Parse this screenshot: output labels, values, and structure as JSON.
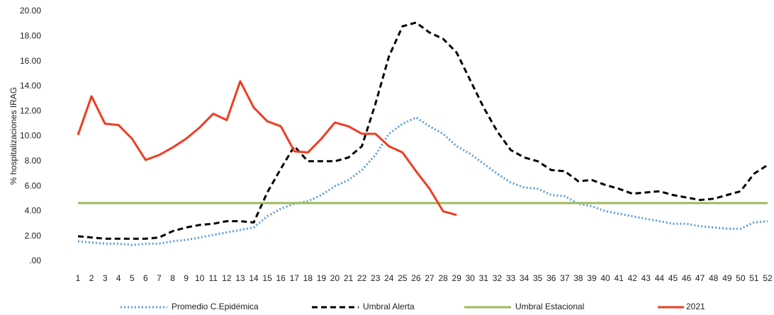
{
  "chart_data": {
    "type": "line",
    "y_label": "% hospitalizaciones IRAG",
    "categories": [
      "1",
      "2",
      "3",
      "4",
      "5",
      "6",
      "7",
      "8",
      "9",
      "10",
      "11",
      "12",
      "13",
      "14",
      "15",
      "16",
      "17",
      "18",
      "19",
      "20",
      "21",
      "22",
      "23",
      "24",
      "25",
      "26",
      "27",
      "28",
      "29",
      "30",
      "31",
      "32",
      "33",
      "34",
      "35",
      "36",
      "37",
      "38",
      "39",
      "40",
      "41",
      "42",
      "43",
      "44",
      "45",
      "46",
      "47",
      "48",
      "49",
      "50",
      "51",
      "52"
    ],
    "ylim": [
      0,
      20
    ],
    "yticks": [
      {
        "value": 0,
        "label": ".00"
      },
      {
        "value": 2,
        "label": "2.00"
      },
      {
        "value": 4,
        "label": "4.00"
      },
      {
        "value": 6,
        "label": "6.00"
      },
      {
        "value": 8,
        "label": "8.00"
      },
      {
        "value": 10,
        "label": "10.00"
      },
      {
        "value": 12,
        "label": "12.00"
      },
      {
        "value": 14,
        "label": "14.00"
      },
      {
        "value": 16,
        "label": "16.00"
      },
      {
        "value": 18,
        "label": "18.00"
      },
      {
        "value": 20,
        "label": "20.00"
      }
    ],
    "legend": "bottom",
    "series": [
      {
        "name": "Promedio  C.Epidémica",
        "color": "#5b9bd5",
        "style": "dotted",
        "values": [
          1.6,
          1.5,
          1.4,
          1.4,
          1.3,
          1.4,
          1.4,
          1.6,
          1.7,
          1.9,
          2.1,
          2.3,
          2.5,
          2.7,
          3.6,
          4.2,
          4.6,
          4.8,
          5.3,
          6.0,
          6.5,
          7.3,
          8.5,
          10.2,
          11.0,
          11.5,
          10.8,
          10.2,
          9.2,
          8.6,
          7.8,
          7.0,
          6.3,
          5.9,
          5.8,
          5.3,
          5.2,
          4.6,
          4.4,
          4.0,
          3.8,
          3.6,
          3.4,
          3.2,
          3.0,
          3.0,
          2.8,
          2.7,
          2.6,
          2.6,
          3.1,
          3.2
        ]
      },
      {
        "name": "Umbral Alerta",
        "color": "#000000",
        "style": "dashed",
        "values": [
          2.0,
          1.9,
          1.8,
          1.8,
          1.8,
          1.8,
          1.9,
          2.4,
          2.7,
          2.9,
          3.0,
          3.2,
          3.2,
          3.1,
          5.5,
          7.4,
          9.2,
          8.0,
          8.0,
          8.0,
          8.3,
          9.2,
          12.6,
          16.4,
          18.8,
          19.1,
          18.3,
          17.8,
          16.7,
          14.5,
          12.3,
          10.4,
          8.9,
          8.3,
          8.0,
          7.3,
          7.2,
          6.4,
          6.5,
          6.1,
          5.8,
          5.4,
          5.5,
          5.6,
          5.3,
          5.1,
          4.9,
          5.0,
          5.3,
          5.6,
          7.0,
          7.7
        ]
      },
      {
        "name": "Umbral Estacional",
        "color": "#9bbb59",
        "style": "solid",
        "values": [
          4.65,
          4.65,
          4.65,
          4.65,
          4.65,
          4.65,
          4.65,
          4.65,
          4.65,
          4.65,
          4.65,
          4.65,
          4.65,
          4.65,
          4.65,
          4.65,
          4.65,
          4.65,
          4.65,
          4.65,
          4.65,
          4.65,
          4.65,
          4.65,
          4.65,
          4.65,
          4.65,
          4.65,
          4.65,
          4.65,
          4.65,
          4.65,
          4.65,
          4.65,
          4.65,
          4.65,
          4.65,
          4.65,
          4.65,
          4.65,
          4.65,
          4.65,
          4.65,
          4.65,
          4.65,
          4.65,
          4.65,
          4.65,
          4.65,
          4.65,
          4.65,
          4.65
        ]
      },
      {
        "name": "2021",
        "color": "#f03c1f",
        "style": "solid",
        "values": [
          10.1,
          13.2,
          11.0,
          10.9,
          9.8,
          8.1,
          8.5,
          9.1,
          9.8,
          10.7,
          11.8,
          11.3,
          14.4,
          12.3,
          11.2,
          10.8,
          8.8,
          8.7,
          9.8,
          11.1,
          10.8,
          10.2,
          10.2,
          9.2,
          8.7,
          7.2,
          5.8,
          4.0,
          3.7,
          null,
          null,
          null,
          null,
          null,
          null,
          null,
          null,
          null,
          null,
          null,
          null,
          null,
          null,
          null,
          null,
          null,
          null,
          null,
          null,
          null,
          null,
          null
        ]
      }
    ]
  }
}
